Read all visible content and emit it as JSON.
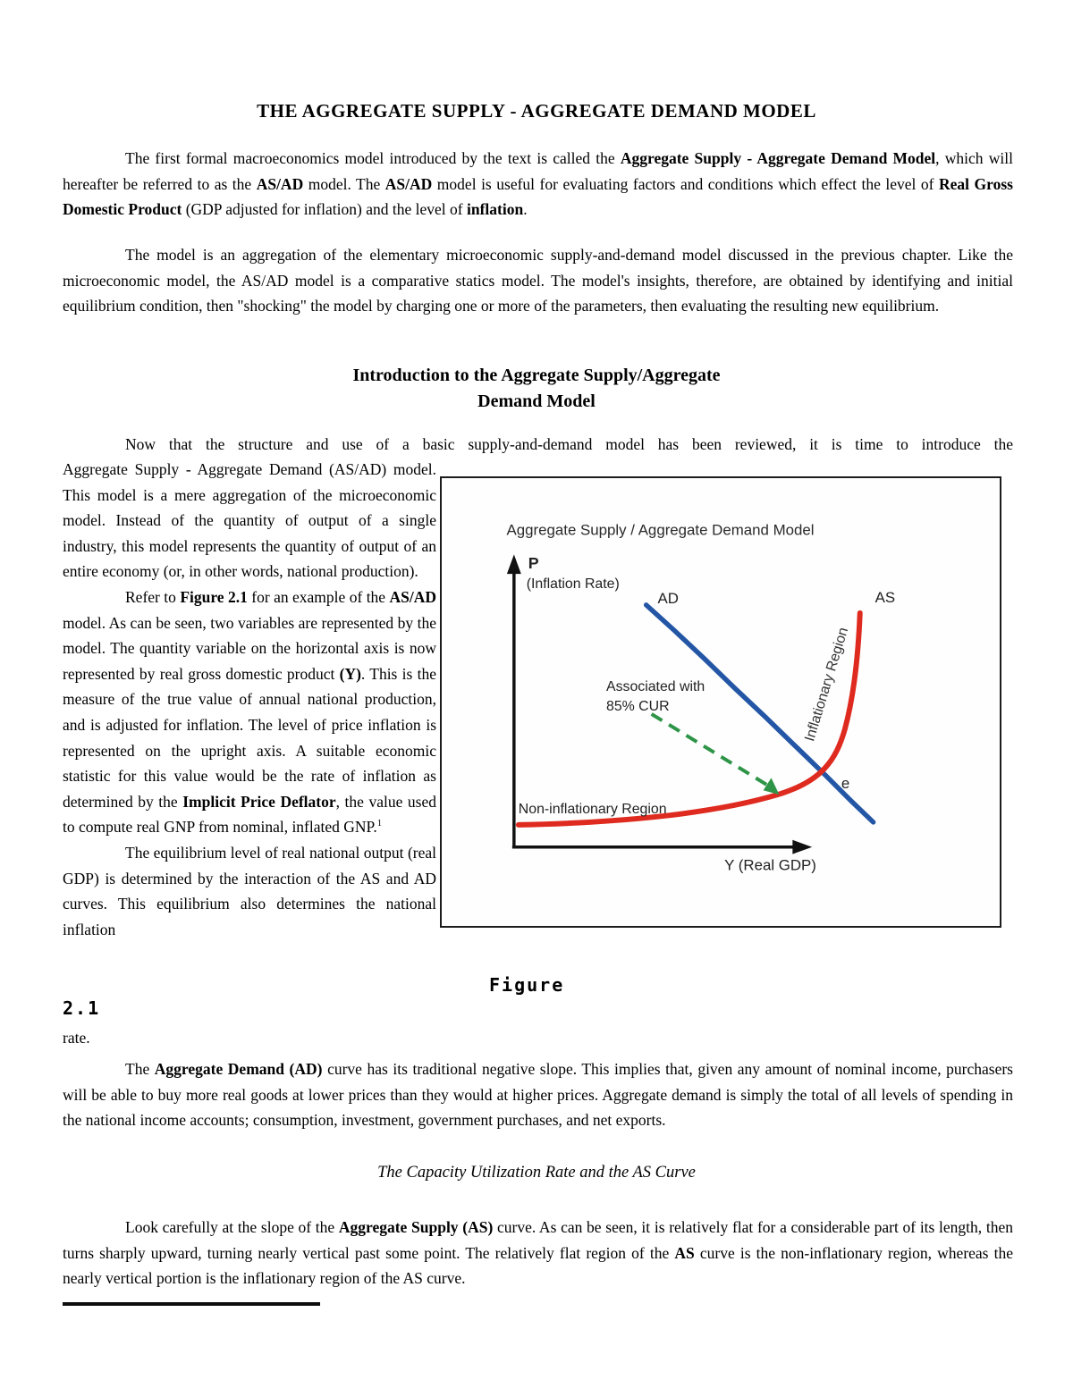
{
  "document": {
    "title": "THE AGGREGATE SUPPLY - AGGREGATE DEMAND MODEL",
    "p1": [
      {
        "t": "The first formal macroeconomics model introduced by the text is called the "
      },
      {
        "t": "Aggregate Supply - Aggregate Demand Model",
        "b": true
      },
      {
        "t": ", which will hereafter be referred to as the "
      },
      {
        "t": "AS/AD",
        "b": true
      },
      {
        "t": " model.  The "
      },
      {
        "t": "AS/AD",
        "b": true
      },
      {
        "t": " model is useful for evaluating factors and conditions which effect the level of "
      },
      {
        "t": "Real Gross Domestic Product",
        "b": true
      },
      {
        "t": " (GDP adjusted for inflation) and the level of "
      },
      {
        "t": "inflation",
        "b": true
      },
      {
        "t": "."
      }
    ],
    "p2": "The model is an aggregation of the elementary microeconomic supply-and-demand model discussed in the previous chapter. Like the microeconomic model, the AS/AD model is a comparative statics model.  The model's insights, therefore, are obtained by identifying and initial equilibrium condition, then \"shocking\" the model by charging one or more of the parameters, then evaluating the resulting new equilibrium.",
    "intro_heading": {
      "line1": "Introduction to the Aggregate Supply/Aggregate",
      "line2": "Demand Model"
    },
    "p3_first_line": "Now that the structure and use of a basic supply-and-demand model has been reviewed, it is time to introduce the",
    "column": {
      "p3_rest": "Aggregate Supply - Aggregate Demand (AS/AD) model.  This model is a mere aggregation of the microeconomic model. Instead of the quantity of output of a single industry, this model represents the quantity of output of an entire economy (or, in other words, national production).",
      "p4": [
        {
          "t": "Refer to "
        },
        {
          "t": "Figure 2.1",
          "b": true
        },
        {
          "t": " for an example of the "
        },
        {
          "t": "AS/AD",
          "b": true
        },
        {
          "t": " model.  As can be seen, two variables are represented by the model.  The quantity variable on the horizontal axis is now represented by real gross domestic product "
        },
        {
          "t": "(Y)",
          "b": true
        },
        {
          "t": ". This is the measure of the true value of annual national production, and is adjusted for inflation.  The level of price inflation is represented on the upright axis.  A suitable economic statistic for this value would be the rate of inflation as determined by the "
        },
        {
          "t": "Implicit Price Deflator",
          "b": true
        },
        {
          "t": ", the value used to compute real GNP from nominal, inflated GNP."
        },
        {
          "t": "1",
          "sup": true
        }
      ],
      "p5": "The equilibrium level of real national output (real GDP) is determined by the interaction of the AS and AD curves.  This equilibrium also determines the national inflation"
    },
    "figure_caption": {
      "word": "Figure",
      "number": "2.1"
    },
    "p5_tail": "rate.",
    "p6": [
      {
        "t": "The "
      },
      {
        "t": "Aggregate Demand (AD)",
        "b": true
      },
      {
        "t": " curve has its traditional negative slope.  This implies that, given any amount of nominal income, purchasers will be able to buy more real goods at lower prices than they would at higher prices.  Aggregate demand is simply the total of all levels of spending in the national income accounts; consumption, investment, government purchases, and net exports."
      }
    ],
    "italic_heading": "The Capacity Utilization Rate and the AS Curve",
    "p7": [
      {
        "t": "Look carefully at the slope of the "
      },
      {
        "t": "Aggregate Supply (AS)",
        "b": true
      },
      {
        "t": " curve.  As can be seen, it is relatively flat for a considerable part of its length, then turns sharply upward, turning nearly vertical past some point.  The relatively flat region of the "
      },
      {
        "t": "AS",
        "b": true
      },
      {
        "t": " curve is the non-inflationary region, whereas the nearly vertical portion is the inflationary region of the AS curve."
      }
    ]
  },
  "figure": {
    "title": "Aggregate Supply / Aggregate Demand Model",
    "y_axis_symbol": "P",
    "y_axis_label": "(Inflation Rate)",
    "x_axis_label": "Y (Real GDP)",
    "ad_label": "AD",
    "as_label": "AS",
    "annotation_line1": "Associated with",
    "annotation_line2": "85% CUR",
    "inflationary_label": "Inflationary Region",
    "non_inflationary_label": "Non-inflationary Region",
    "equilibrium_label": "e",
    "colors": {
      "ad": "#2456a6",
      "as": "#df2a1f",
      "cur_arrow": "#2e9447",
      "axis": "#111111"
    }
  },
  "chart_data": {
    "type": "line",
    "title": "Aggregate Supply / Aggregate Demand Model",
    "xlabel": "Y (Real GDP)",
    "ylabel": "P (Inflation Rate)",
    "axes_numeric": false,
    "series": [
      {
        "name": "AD",
        "color": "#2456a6",
        "shape": "straight downward-sloping line from upper-left to lower-right"
      },
      {
        "name": "AS",
        "color": "#df2a1f",
        "shape": "flat near horizontal axis then turns sharply upward (nearly vertical) at the right"
      },
      {
        "name": "85% CUR pointer",
        "color": "#2e9447",
        "shape": "green dashed arrow pointing down-right toward the AS curve bend"
      }
    ],
    "annotations": [
      "Associated with 85% CUR",
      "Inflationary Region (along steep AS segment)",
      "Non-inflationary Region (above flat AS segment)",
      "e (equilibrium at AS-AD intersection)"
    ],
    "legend_position": "inline curve labels",
    "grid": false
  }
}
